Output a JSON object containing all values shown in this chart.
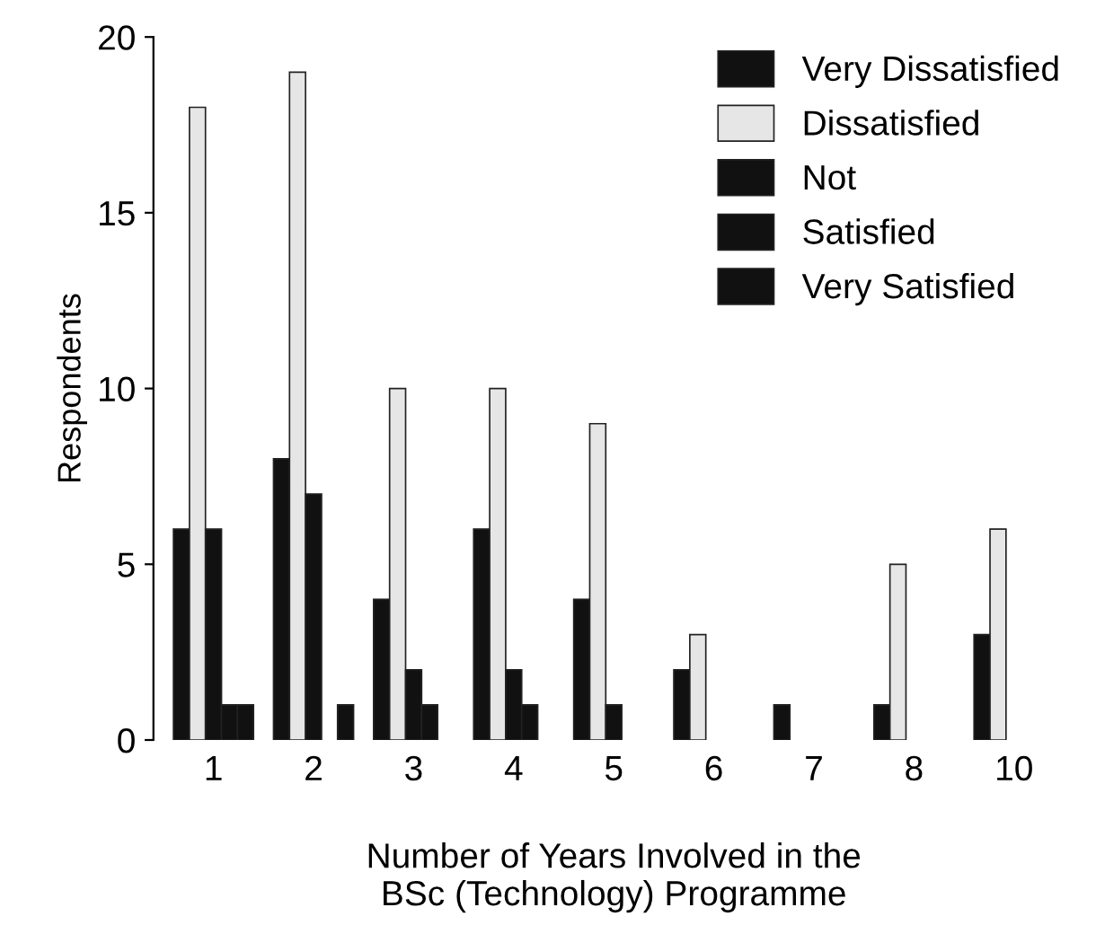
{
  "chart_data": {
    "type": "bar",
    "xlabel": "Number of Years Involved in the\nBSc (Technology) Programme",
    "ylabel": "Respondents",
    "categories": [
      "1",
      "2",
      "3",
      "4",
      "5",
      "6",
      "7",
      "8",
      "10"
    ],
    "series": [
      {
        "name": "Very Dissatisfied",
        "color": "#111111",
        "values": [
          6,
          8,
          4,
          6,
          4,
          2,
          1,
          1,
          3
        ]
      },
      {
        "name": "Dissatisfied",
        "color": "#e6e6e6",
        "values": [
          18,
          19,
          10,
          10,
          9,
          3,
          0,
          5,
          6
        ]
      },
      {
        "name": "Not",
        "color": "#111111",
        "values": [
          6,
          7,
          2,
          2,
          1,
          0,
          0,
          0,
          0
        ]
      },
      {
        "name": "Satisfied",
        "color": "#111111",
        "values": [
          1,
          0,
          1,
          1,
          0,
          0,
          0,
          0,
          0
        ]
      },
      {
        "name": "Very Satisfied",
        "color": "#111111",
        "values": [
          1,
          1,
          0,
          0,
          0,
          0,
          0,
          0,
          0
        ]
      }
    ],
    "ylim": [
      0,
      20
    ],
    "yticks": [
      0,
      5,
      10,
      15,
      20
    ],
    "grid": false,
    "legend": "top right"
  }
}
